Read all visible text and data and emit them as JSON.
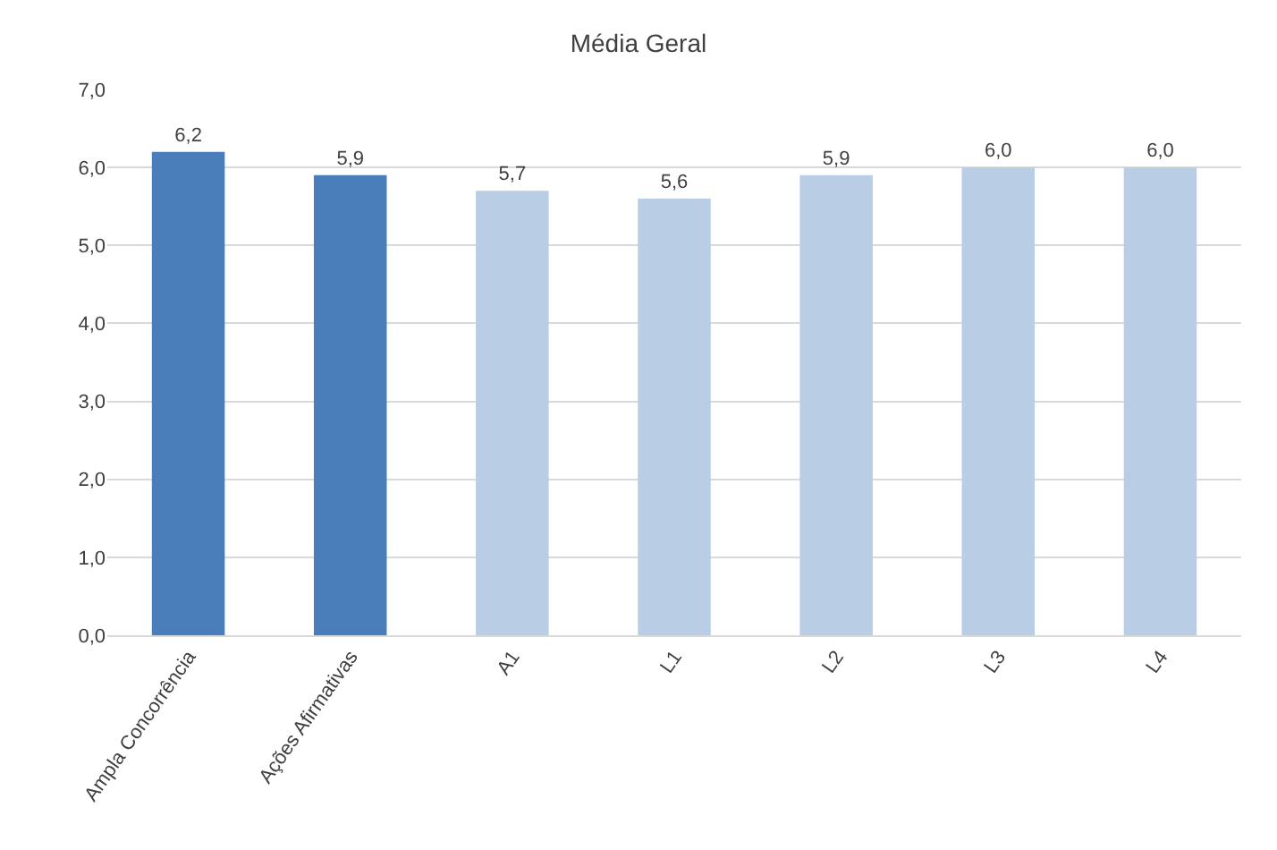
{
  "chart_data": {
    "type": "bar",
    "title": "Média Geral",
    "categories": [
      "Ampla Concorrência",
      "Ações Afirmativas",
      "A1",
      "L1",
      "L2",
      "L3",
      "L4"
    ],
    "values": [
      6.2,
      5.9,
      5.7,
      5.6,
      5.9,
      6.0,
      6.0
    ],
    "colors": [
      "#4a7ebb",
      "#4a7ebb",
      "#b9cde5",
      "#b9cde5",
      "#b9cde5",
      "#b9cde5",
      "#b9cde5"
    ],
    "value_labels": [
      "6,2",
      "5,9",
      "5,7",
      "5,6",
      "5,9",
      "6,0",
      "6,0"
    ],
    "ylim": [
      0,
      7
    ],
    "yticks": [
      {
        "value": 0,
        "label": "0,0"
      },
      {
        "value": 1,
        "label": "1,0"
      },
      {
        "value": 2,
        "label": "2,0"
      },
      {
        "value": 3,
        "label": "3,0"
      },
      {
        "value": 4,
        "label": "4,0"
      },
      {
        "value": 5,
        "label": "5,0"
      },
      {
        "value": 6,
        "label": "6,0"
      },
      {
        "value": 7,
        "label": "7,0"
      }
    ],
    "grid": "y"
  }
}
